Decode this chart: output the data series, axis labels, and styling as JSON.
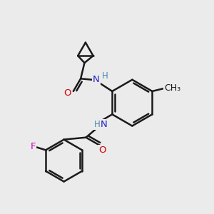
{
  "background_color": "#ebebeb",
  "bond_color": "#1a1a1a",
  "atom_colors": {
    "O": "#cc0000",
    "N": "#2222cc",
    "F": "#cc00cc",
    "H": "#4488aa",
    "C": "#1a1a1a"
  },
  "figsize": [
    3.0,
    3.0
  ],
  "dpi": 100
}
